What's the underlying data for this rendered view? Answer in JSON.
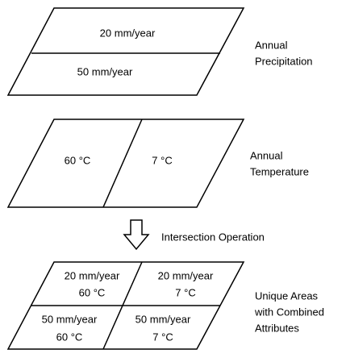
{
  "layers": [
    {
      "cells": [
        "20 mm/year",
        "50 mm/year"
      ],
      "label": [
        "Annual",
        "Precipitation"
      ]
    },
    {
      "cells": [
        "60 °C",
        "7 °C"
      ],
      "label": [
        "Annual",
        "Temperature"
      ]
    },
    {
      "cells": [
        [
          "20 mm/year",
          "60 °C"
        ],
        [
          "20 mm/year",
          "7 °C"
        ],
        [
          "50 mm/year",
          "60 °C"
        ],
        [
          "50 mm/year",
          "7 °C"
        ]
      ],
      "label": [
        "Unique Areas",
        "with Combined",
        "Attributes"
      ]
    }
  ],
  "operation": "Intersection Operation"
}
